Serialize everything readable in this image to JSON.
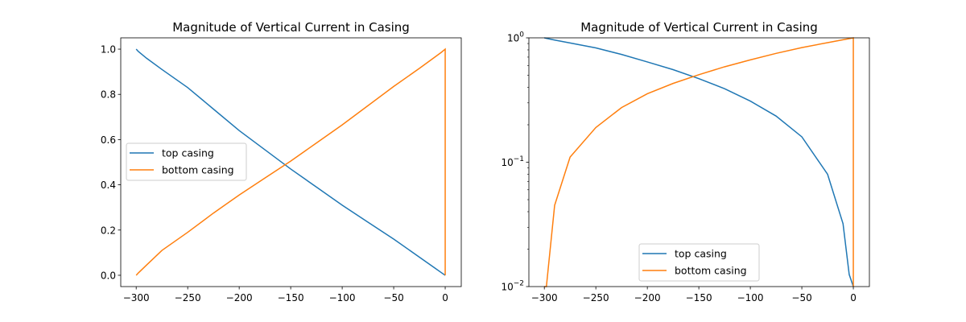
{
  "chart_data": [
    {
      "type": "line",
      "title": "Magnitude of Vertical Current in Casing",
      "xlabel": "",
      "ylabel": "",
      "xlim": [
        -315,
        15.6
      ],
      "ylim": [
        -0.05,
        1.05
      ],
      "yscale": "linear",
      "xticks": [
        -300,
        -250,
        -200,
        -150,
        -100,
        -50,
        0
      ],
      "xtick_labels": [
        "−300",
        "−250",
        "−200",
        "−150",
        "−100",
        "−50",
        "0"
      ],
      "yticks": [
        0,
        0.2,
        0.4,
        0.6,
        0.8,
        1.0
      ],
      "ytick_labels": [
        "0.0",
        "0.2",
        "0.4",
        "0.6",
        "0.8",
        "1.0"
      ],
      "grid": false,
      "legend": "center-left",
      "series": [
        {
          "name": "top casing",
          "color": "#1f77b4",
          "x": [
            -300,
            -298,
            -290,
            -275,
            -250,
            -225,
            -200,
            -175,
            -150,
            -125,
            -100,
            -75,
            -50,
            -25,
            -10,
            -4,
            0
          ],
          "y": [
            1.0,
            0.99,
            0.96,
            0.91,
            0.83,
            0.735,
            0.64,
            0.555,
            0.47,
            0.39,
            0.31,
            0.235,
            0.16,
            0.08,
            0.032,
            0.0125,
            0.0
          ]
        },
        {
          "name": "bottom casing",
          "color": "#ff7f0e",
          "x": [
            -300,
            -298,
            -290,
            -275,
            -250,
            -225,
            -200,
            -175,
            -150,
            -125,
            -100,
            -75,
            -50,
            -25,
            -10,
            -4,
            0,
            0
          ],
          "y": [
            0.0,
            0.01,
            0.045,
            0.11,
            0.19,
            0.275,
            0.355,
            0.43,
            0.505,
            0.585,
            0.665,
            0.75,
            0.835,
            0.915,
            0.965,
            0.985,
            1.0,
            0.0
          ]
        }
      ]
    },
    {
      "type": "line",
      "title": "Magnitude of Vertical Current in Casing",
      "xlabel": "",
      "ylabel": "",
      "xlim": [
        -315,
        15.6
      ],
      "ylim": [
        0.01,
        1
      ],
      "yscale": "log",
      "xticks": [
        -300,
        -250,
        -200,
        -150,
        -100,
        -50,
        0
      ],
      "xtick_labels": [
        "−300",
        "−250",
        "−200",
        "−150",
        "−100",
        "−50",
        "0"
      ],
      "yticks": [
        1,
        0.1,
        0.01
      ],
      "ytick_labels": [
        {
          "base": "10",
          "exp": "0"
        },
        {
          "base": "10",
          "exp": "−1"
        },
        {
          "base": "10",
          "exp": "−2"
        }
      ],
      "grid": false,
      "legend": "lower-center",
      "series": [
        {
          "name": "top casing",
          "color": "#1f77b4",
          "x": [
            -300,
            -298,
            -290,
            -275,
            -250,
            -225,
            -200,
            -175,
            -150,
            -125,
            -100,
            -75,
            -50,
            -25,
            -10,
            -4,
            0
          ],
          "y": [
            1.0,
            0.99,
            0.96,
            0.91,
            0.83,
            0.735,
            0.64,
            0.555,
            0.47,
            0.39,
            0.31,
            0.235,
            0.16,
            0.08,
            0.032,
            0.0125,
            0.0
          ]
        },
        {
          "name": "bottom casing",
          "color": "#ff7f0e",
          "x": [
            -300,
            -298,
            -290,
            -275,
            -250,
            -225,
            -200,
            -175,
            -150,
            -125,
            -100,
            -75,
            -50,
            -25,
            -10,
            -4,
            0,
            0
          ],
          "y": [
            0.0,
            0.01,
            0.045,
            0.11,
            0.19,
            0.275,
            0.355,
            0.43,
            0.505,
            0.585,
            0.665,
            0.75,
            0.835,
            0.915,
            0.965,
            0.985,
            1.0,
            0.0
          ]
        }
      ]
    }
  ]
}
